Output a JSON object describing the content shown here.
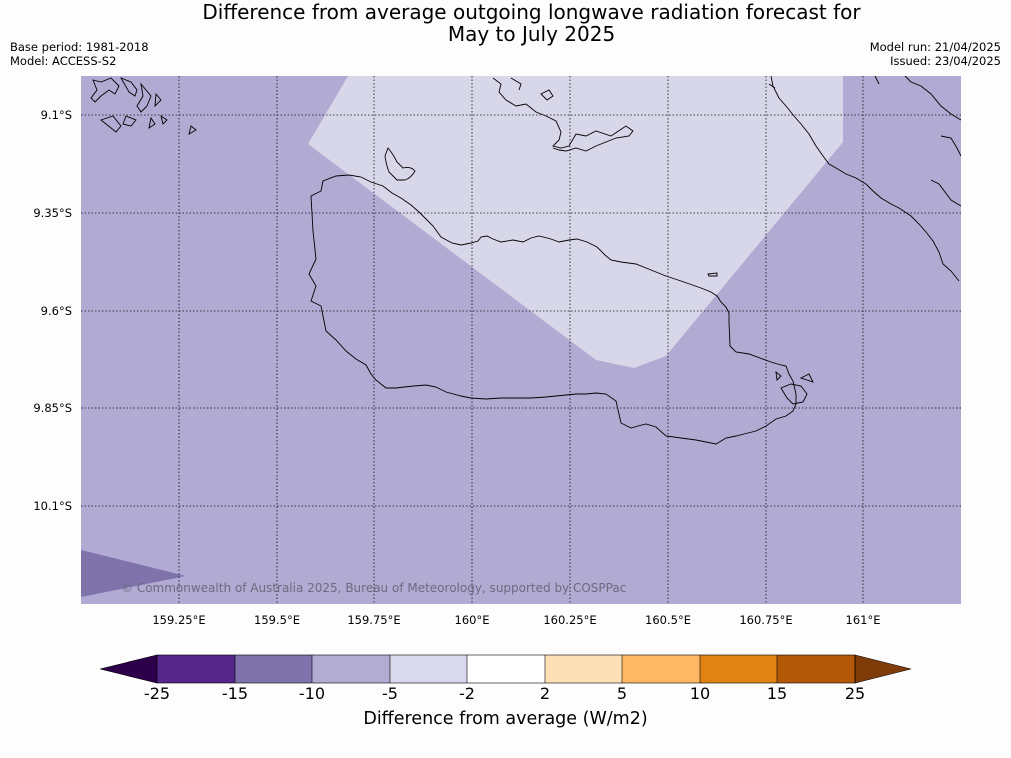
{
  "header": {
    "title_line1": "Difference from average outgoing longwave radiation forecast for",
    "title_line2": "May to July 2025",
    "base_period": "Base period: 1981-2018",
    "model": "Model: ACCESS-S2",
    "model_run": "Model run: 21/04/2025",
    "issued": "Issued: 23/04/2025"
  },
  "map": {
    "latitude_labels": [
      "9.1°S",
      "9.35°S",
      "9.6°S",
      "9.85°S",
      "10.1°S"
    ],
    "longitude_labels": [
      "159.25°E",
      "159.5°E",
      "159.75°E",
      "160°E",
      "160.25°E",
      "160.5°E",
      "160.75°E",
      "161°E"
    ],
    "copyright": "© Commonwealth of Australia 2025, Bureau of Meteorology, supported by COSPPac",
    "region_colors": {
      "range_-10_to_-5": "#b1aad2",
      "range_-5_to_-2": "#d7d7e9",
      "range_-15_to_-10": "#8073ac"
    }
  },
  "colorbar": {
    "label": "Difference from average (W/m2)",
    "ticks": [
      "-25",
      "-15",
      "-10",
      "-5",
      "-2",
      "2",
      "5",
      "10",
      "15",
      "25"
    ],
    "bins": [
      {
        "from": "-25",
        "to": "-15",
        "color": "#542788"
      },
      {
        "from": "-15",
        "to": "-10",
        "color": "#8073ac"
      },
      {
        "from": "-10",
        "to": "-5",
        "color": "#b2abd2"
      },
      {
        "from": "-5",
        "to": "-2",
        "color": "#d8daeb"
      },
      {
        "from": "-2",
        "to": "2",
        "color": "#ffffff"
      },
      {
        "from": "2",
        "to": "5",
        "color": "#fee0b6"
      },
      {
        "from": "5",
        "to": "10",
        "color": "#fdb863"
      },
      {
        "from": "10",
        "to": "15",
        "color": "#e08214"
      },
      {
        "from": "15",
        "to": "25",
        "color": "#b35806"
      }
    ],
    "extend_low_color": "#2d004b",
    "extend_high_color": "#7f3b08"
  }
}
